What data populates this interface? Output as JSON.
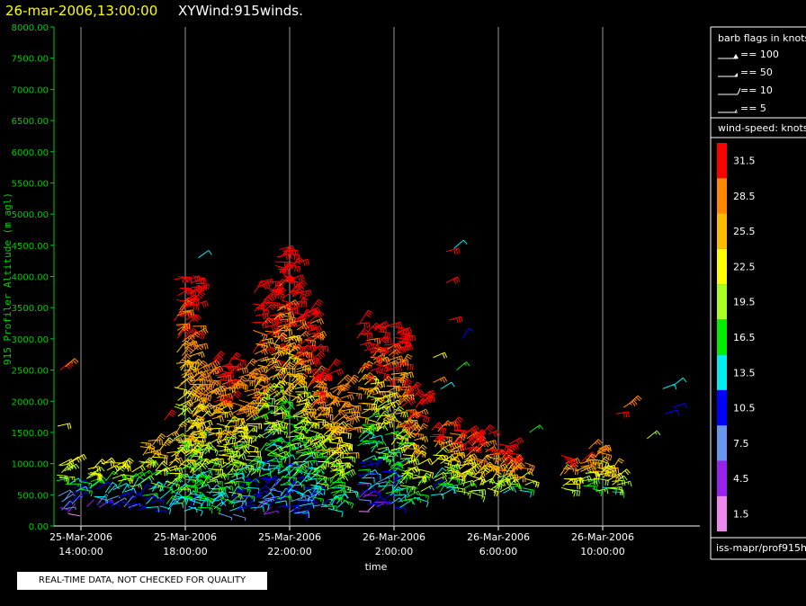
{
  "title": {
    "date": "26-mar-2006,13:00:00",
    "main": "XYWind:915winds."
  },
  "notice": "REAL-TIME DATA, NOT CHECKED FOR QUALITY",
  "chart_data": {
    "type": "wind barb time-height",
    "ylabel": "915 Profiler Altitude (m agl)",
    "xlabel": "time",
    "ylim": [
      0,
      8000
    ],
    "yticks": [
      "0.00",
      "500.00",
      "1000.00",
      "1500.00",
      "2000.00",
      "2500.00",
      "3000.00",
      "3500.00",
      "4000.00",
      "4500.00",
      "5000.00",
      "5500.00",
      "6000.00",
      "6500.00",
      "7000.00",
      "7500.00",
      "8000.00"
    ],
    "xticks": [
      {
        "date": "25-Mar-2006",
        "time": "14:00:00"
      },
      {
        "date": "25-Mar-2006",
        "time": "18:00:00"
      },
      {
        "date": "25-Mar-2006",
        "time": "22:00:00"
      },
      {
        "date": "26-Mar-2006",
        "time": "2:00:00"
      },
      {
        "date": "26-Mar-2006",
        "time": "6:00:00"
      },
      {
        "date": "26-Mar-2006",
        "time": "10:00:00"
      }
    ],
    "barb_legend": {
      "title": "barb flags in knots",
      "items": [
        "== 100",
        "== 50",
        "== 10",
        "== 5"
      ]
    },
    "color_legend": {
      "title": "wind-speed: knots",
      "items": [
        {
          "label": "31.5",
          "color": "#ff0000"
        },
        {
          "label": "28.5",
          "color": "#ff8800"
        },
        {
          "label": "25.5",
          "color": "#ffbb00"
        },
        {
          "label": "22.5",
          "color": "#ffff00"
        },
        {
          "label": "19.5",
          "color": "#aaff22"
        },
        {
          "label": "16.5",
          "color": "#00ee00"
        },
        {
          "label": "13.5",
          "color": "#00eeee"
        },
        {
          "label": "10.5",
          "color": "#0000ff"
        },
        {
          "label": "7.5",
          "color": "#6699ee"
        },
        {
          "label": "4.5",
          "color": "#9922ee"
        },
        {
          "label": "1.5",
          "color": "#ee88ee"
        }
      ]
    },
    "source": "iss-mapr/prof915h",
    "wind_clusters": [
      {
        "t": 13.5,
        "h0": 200,
        "h1": 1050,
        "sp": [
          4,
          22
        ]
      },
      {
        "t": 14.6,
        "h0": 300,
        "h1": 1000,
        "sp": [
          6,
          23
        ]
      },
      {
        "t": 15.6,
        "h0": 300,
        "h1": 1000,
        "sp": [
          8,
          24
        ]
      },
      {
        "t": 16.6,
        "h0": 250,
        "h1": 1350,
        "sp": [
          10,
          26
        ]
      },
      {
        "t": 17.6,
        "h0": 250,
        "h1": 1500,
        "sp": [
          12,
          27
        ]
      },
      {
        "t": 18.0,
        "h0": 300,
        "h1": 4000,
        "sp": [
          14,
          32
        ]
      },
      {
        "t": 18.6,
        "h0": 300,
        "h1": 2600,
        "sp": [
          14,
          30
        ]
      },
      {
        "t": 19.4,
        "h0": 200,
        "h1": 2700,
        "sp": [
          12,
          31
        ]
      },
      {
        "t": 20.2,
        "h0": 250,
        "h1": 2500,
        "sp": [
          10,
          30
        ]
      },
      {
        "t": 21.0,
        "h0": 200,
        "h1": 3900,
        "sp": [
          8,
          33
        ]
      },
      {
        "t": 21.8,
        "h0": 200,
        "h1": 4450,
        "sp": [
          10,
          33
        ]
      },
      {
        "t": 22.5,
        "h0": 200,
        "h1": 3500,
        "sp": [
          10,
          32
        ]
      },
      {
        "t": 23.2,
        "h0": 300,
        "h1": 2500,
        "sp": [
          12,
          31
        ]
      },
      {
        "t": 23.8,
        "h0": 300,
        "h1": 2300,
        "sp": [
          14,
          30
        ]
      },
      {
        "t": 25.0,
        "h0": 250,
        "h1": 3300,
        "sp": [
          6,
          33
        ]
      },
      {
        "t": 25.8,
        "h0": 300,
        "h1": 3200,
        "sp": [
          10,
          33
        ]
      },
      {
        "t": 26.6,
        "h0": 400,
        "h1": 2200,
        "sp": [
          16,
          32
        ]
      },
      {
        "t": 27.8,
        "h0": 500,
        "h1": 1700,
        "sp": [
          12,
          31
        ]
      },
      {
        "t": 28.5,
        "h0": 550,
        "h1": 1550,
        "sp": [
          18,
          32
        ]
      },
      {
        "t": 29.3,
        "h0": 550,
        "h1": 1500,
        "sp": [
          20,
          32
        ]
      },
      {
        "t": 30.0,
        "h0": 550,
        "h1": 1300,
        "sp": [
          18,
          32
        ]
      },
      {
        "t": 30.6,
        "h0": 550,
        "h1": 1100,
        "sp": [
          14,
          31
        ]
      },
      {
        "t": 32.8,
        "h0": 600,
        "h1": 1150,
        "sp": [
          20,
          31
        ]
      },
      {
        "t": 33.6,
        "h0": 600,
        "h1": 1250,
        "sp": [
          16,
          28
        ]
      },
      {
        "t": 34.2,
        "h0": 550,
        "h1": 1000,
        "sp": [
          18,
          26
        ]
      }
    ],
    "wind_spots": [
      {
        "t": 13.2,
        "h": 2500,
        "sp": 31
      },
      {
        "t": 13.4,
        "h": 2550,
        "sp": 28
      },
      {
        "t": 13.1,
        "h": 1600,
        "sp": 22
      },
      {
        "t": 17.2,
        "h": 1700,
        "sp": 31
      },
      {
        "t": 18.3,
        "h": 3600,
        "sp": 32
      },
      {
        "t": 18.5,
        "h": 4300,
        "sp": 13
      },
      {
        "t": 28.0,
        "h": 4400,
        "sp": 31
      },
      {
        "t": 28.3,
        "h": 4450,
        "sp": 13
      },
      {
        "t": 28.0,
        "h": 3900,
        "sp": 31
      },
      {
        "t": 28.1,
        "h": 3300,
        "sp": 31
      },
      {
        "t": 28.4,
        "h": 2500,
        "sp": 16
      },
      {
        "t": 27.5,
        "h": 2700,
        "sp": 22
      },
      {
        "t": 27.8,
        "h": 2200,
        "sp": 13
      },
      {
        "t": 27.5,
        "h": 2300,
        "sp": 28
      },
      {
        "t": 28.6,
        "h": 3000,
        "sp": 10
      },
      {
        "t": 31.2,
        "h": 1500,
        "sp": 16
      },
      {
        "t": 34.8,
        "h": 1900,
        "sp": 28
      },
      {
        "t": 35.0,
        "h": 1950,
        "sp": 28
      },
      {
        "t": 34.5,
        "h": 1800,
        "sp": 31
      },
      {
        "t": 35.7,
        "h": 1400,
        "sp": 19
      },
      {
        "t": 36.3,
        "h": 2200,
        "sp": 13
      },
      {
        "t": 36.7,
        "h": 2250,
        "sp": 13
      },
      {
        "t": 36.4,
        "h": 1800,
        "sp": 10
      },
      {
        "t": 36.7,
        "h": 1900,
        "sp": 10
      }
    ]
  }
}
